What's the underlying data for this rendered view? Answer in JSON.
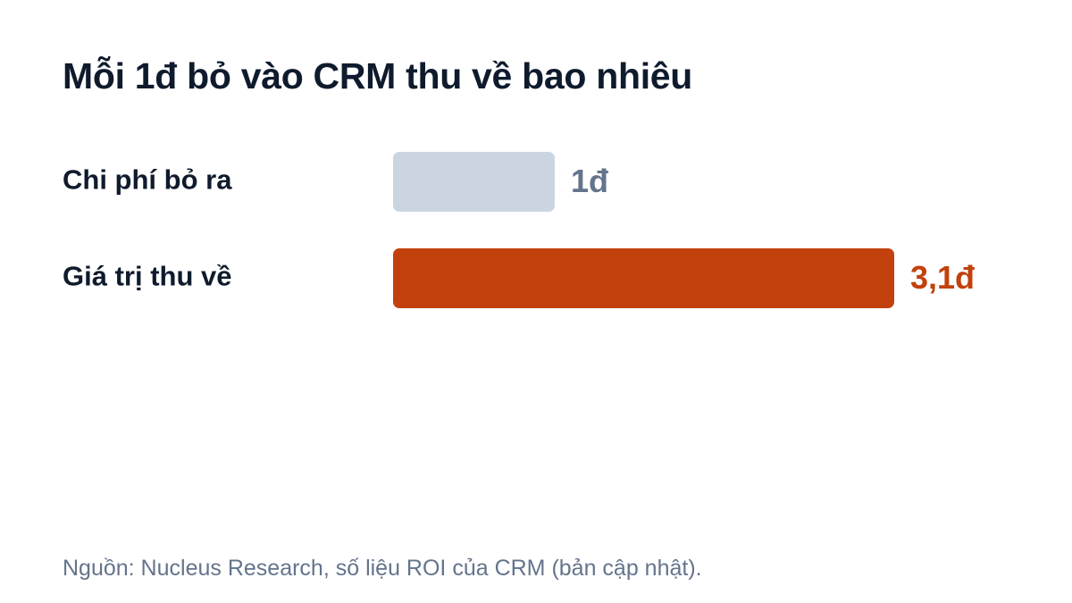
{
  "chart_data": {
    "type": "bar",
    "orientation": "horizontal",
    "title": "Mỗi 1đ bỏ vào CRM thu về bao nhiêu",
    "categories": [
      "Chi phí bỏ ra",
      "Giá trị thu về"
    ],
    "values": [
      1,
      3.1
    ],
    "value_labels": [
      "1đ",
      "3,1đ"
    ],
    "colors": [
      "#cbd5e1",
      "#c2410c"
    ],
    "label_colors": [
      "#64748b",
      "#c2410c"
    ],
    "xlim": [
      0,
      3.1
    ],
    "grid": false,
    "legend": "none"
  },
  "source": "Nguồn: Nucleus Research, số liệu ROI của CRM (bản cập nhật).",
  "colors": {
    "title": "#0f1b2d",
    "category_label": "#0f1b2d"
  }
}
